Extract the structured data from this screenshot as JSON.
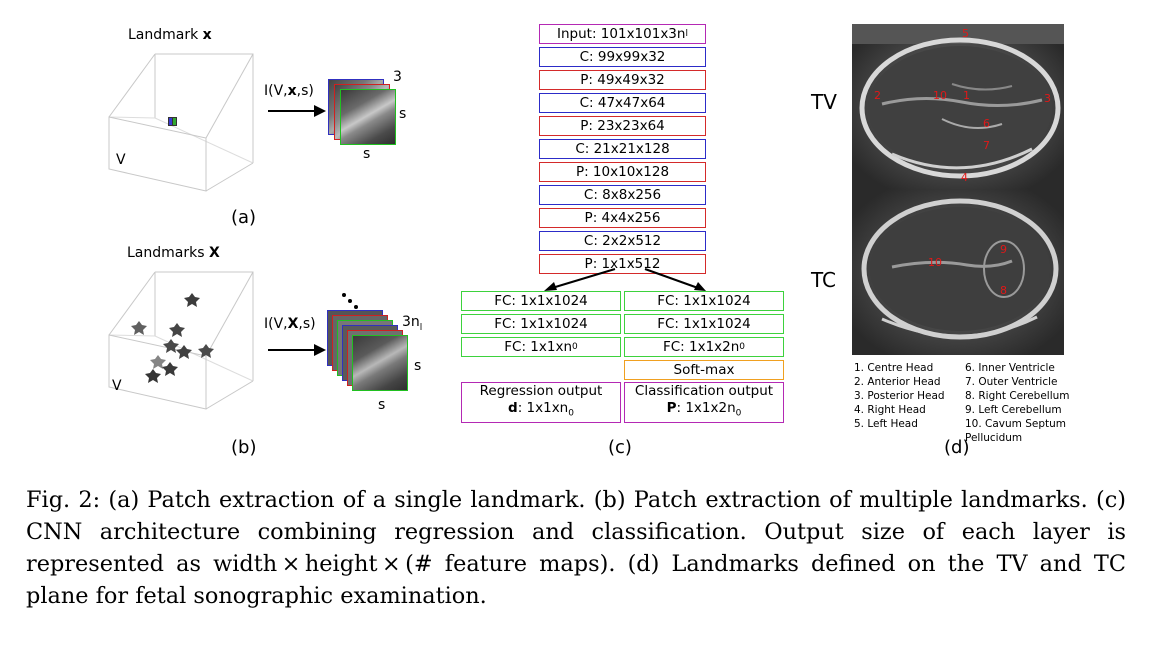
{
  "panel_a": {
    "title_prefix": "Landmark ",
    "title_bold": "x",
    "volume_label": "V",
    "op_prefix": "I(V,",
    "op_bold": "x",
    "op_suffix": ",s)",
    "stack_count": "3",
    "size_right": "s",
    "size_bottom": "s",
    "panel_label": "(a)"
  },
  "panel_b": {
    "title_prefix": "Landmarks ",
    "title_bold": "X",
    "volume_label": "V",
    "op_prefix": "I(V,",
    "op_bold": "X",
    "op_suffix": ",s)",
    "stack_count": "3n",
    "stack_count_sub": "l",
    "size_right": "s",
    "size_bottom": "s",
    "panel_label": "(b)"
  },
  "panel_c": {
    "input_main": "Input: 101x101x3n",
    "input_sub": "l",
    "layers": [
      {
        "label": "C: 99x99x32",
        "kind": "conv"
      },
      {
        "label": "P: 49x49x32",
        "kind": "pool"
      },
      {
        "label": "C: 47x47x64",
        "kind": "conv"
      },
      {
        "label": "P: 23x23x64",
        "kind": "pool"
      },
      {
        "label": "C: 21x21x128",
        "kind": "conv"
      },
      {
        "label": "P: 10x10x128",
        "kind": "pool"
      },
      {
        "label": "C: 8x8x256",
        "kind": "conv"
      },
      {
        "label": "P: 4x4x256",
        "kind": "pool"
      },
      {
        "label": "C: 2x2x512",
        "kind": "conv"
      },
      {
        "label": "P: 1x1x512",
        "kind": "pool"
      }
    ],
    "left_fc": [
      "FC: 1x1x1024",
      "FC: 1x1x1024"
    ],
    "left_fc3_main": "FC: 1x1xn",
    "left_fc3_sub": "0",
    "right_fc": [
      "FC: 1x1x1024",
      "FC: 1x1x1024"
    ],
    "right_fc3_main": "FC: 1x1x2n",
    "right_fc3_sub": "0",
    "softmax": "Soft-max",
    "reg_title": "Regression output",
    "reg_bold": "d",
    "reg_rest": ": 1x1xn",
    "reg_sub": "0",
    "cls_title": "Classification output",
    "cls_bold": "P",
    "cls_rest": ": 1x1x2n",
    "cls_sub": "0",
    "panel_label": "(c)"
  },
  "panel_d": {
    "tv_label": "TV",
    "tc_label": "TC",
    "tv_marks": [
      "5",
      "2",
      "10",
      "1",
      "3",
      "6",
      "7",
      "4"
    ],
    "tc_marks": [
      "9",
      "10",
      "8"
    ],
    "legend_left": [
      "1.   Centre Head",
      "2.   Anterior Head",
      "3.   Posterior Head",
      "4.   Right Head",
      "5.   Left Head"
    ],
    "legend_right": [
      "6.   Inner Ventricle",
      "7.   Outer Ventricle",
      "8.   Right Cerebellum",
      "9.   Left Cerebellum",
      "10. Cavum Septum",
      "      Pellucidum"
    ],
    "panel_label": "(d)"
  },
  "caption": {
    "fig": "Fig. 2:",
    "text": " (a) Patch extraction of a single landmark. (b) Patch extraction of multiple landmarks. (c) CNN architecture combining regression and classification. Output size of each layer is represented as width × height × (# feature maps). (d) Landmarks defined on the TV and TC plane for fetal sonographic examination."
  },
  "colors": {
    "conv": "#2c2cc8",
    "pool": "#d42a2a",
    "fc": "#3dd23d",
    "io": "#b429b4",
    "softmax": "#f0a020",
    "landmark": "#e01818"
  }
}
